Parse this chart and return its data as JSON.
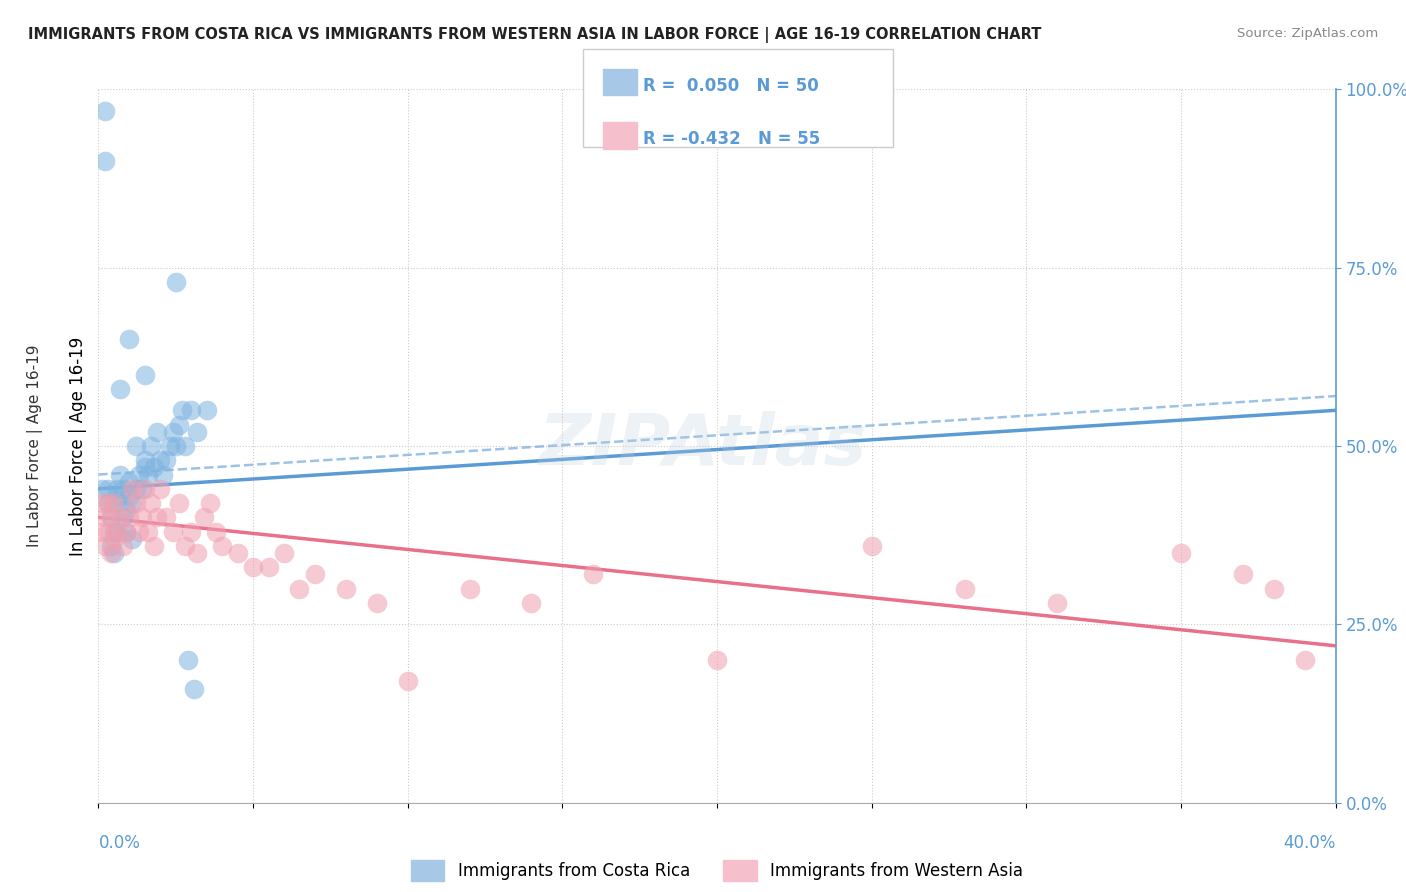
{
  "title": "IMMIGRANTS FROM COSTA RICA VS IMMIGRANTS FROM WESTERN ASIA IN LABOR FORCE | AGE 16-19 CORRELATION CHART",
  "source": "Source: ZipAtlas.com",
  "legend_label1": "Immigrants from Costa Rica",
  "legend_label2": "Immigrants from Western Asia",
  "R1": 0.05,
  "N1": 50,
  "R2": -0.432,
  "N2": 55,
  "color_blue": "#5B9BD5",
  "color_blue_scatter": "#7EB3E0",
  "color_pink": "#E8708A",
  "color_pink_scatter": "#F0A0B0",
  "color_blue_legend_patch": "#A8C8E8",
  "color_pink_legend_patch": "#F5C0CB",
  "xlim": [
    0.0,
    0.4
  ],
  "ylim": [
    0.0,
    1.0
  ],
  "blue_trend": [
    0.44,
    0.55
  ],
  "pink_trend": [
    0.4,
    0.22
  ],
  "blue_dashed_trend": [
    0.46,
    0.57
  ],
  "blue_scatter_x": [
    0.001,
    0.002,
    0.002,
    0.003,
    0.003,
    0.004,
    0.004,
    0.005,
    0.005,
    0.006,
    0.006,
    0.007,
    0.007,
    0.008,
    0.008,
    0.009,
    0.009,
    0.01,
    0.01,
    0.011,
    0.011,
    0.012,
    0.012,
    0.013,
    0.014,
    0.015,
    0.015,
    0.016,
    0.017,
    0.018,
    0.019,
    0.02,
    0.021,
    0.022,
    0.023,
    0.024,
    0.025,
    0.026,
    0.027,
    0.028,
    0.029,
    0.03,
    0.031,
    0.032,
    0.035,
    0.025,
    0.015,
    0.01,
    0.007,
    0.005
  ],
  "blue_scatter_y": [
    0.44,
    0.97,
    0.9,
    0.42,
    0.44,
    0.36,
    0.4,
    0.38,
    0.42,
    0.38,
    0.44,
    0.46,
    0.43,
    0.4,
    0.44,
    0.38,
    0.41,
    0.43,
    0.45,
    0.42,
    0.37,
    0.5,
    0.44,
    0.46,
    0.44,
    0.47,
    0.48,
    0.46,
    0.5,
    0.47,
    0.52,
    0.48,
    0.46,
    0.48,
    0.5,
    0.52,
    0.5,
    0.53,
    0.55,
    0.5,
    0.2,
    0.55,
    0.16,
    0.52,
    0.55,
    0.73,
    0.6,
    0.65,
    0.58,
    0.35
  ],
  "pink_scatter_x": [
    0.001,
    0.001,
    0.002,
    0.002,
    0.003,
    0.003,
    0.004,
    0.004,
    0.005,
    0.005,
    0.006,
    0.007,
    0.008,
    0.009,
    0.01,
    0.011,
    0.012,
    0.013,
    0.014,
    0.015,
    0.016,
    0.017,
    0.018,
    0.019,
    0.02,
    0.022,
    0.024,
    0.026,
    0.028,
    0.03,
    0.032,
    0.034,
    0.036,
    0.038,
    0.04,
    0.045,
    0.05,
    0.055,
    0.06,
    0.065,
    0.07,
    0.08,
    0.09,
    0.1,
    0.12,
    0.14,
    0.16,
    0.2,
    0.25,
    0.28,
    0.31,
    0.35,
    0.37,
    0.38,
    0.39
  ],
  "pink_scatter_y": [
    0.42,
    0.38,
    0.4,
    0.36,
    0.38,
    0.42,
    0.35,
    0.4,
    0.37,
    0.42,
    0.38,
    0.4,
    0.36,
    0.38,
    0.4,
    0.44,
    0.42,
    0.38,
    0.4,
    0.44,
    0.38,
    0.42,
    0.36,
    0.4,
    0.44,
    0.4,
    0.38,
    0.42,
    0.36,
    0.38,
    0.35,
    0.4,
    0.42,
    0.38,
    0.36,
    0.35,
    0.33,
    0.33,
    0.35,
    0.3,
    0.32,
    0.3,
    0.28,
    0.17,
    0.3,
    0.28,
    0.32,
    0.2,
    0.36,
    0.3,
    0.28,
    0.35,
    0.32,
    0.3,
    0.2
  ]
}
